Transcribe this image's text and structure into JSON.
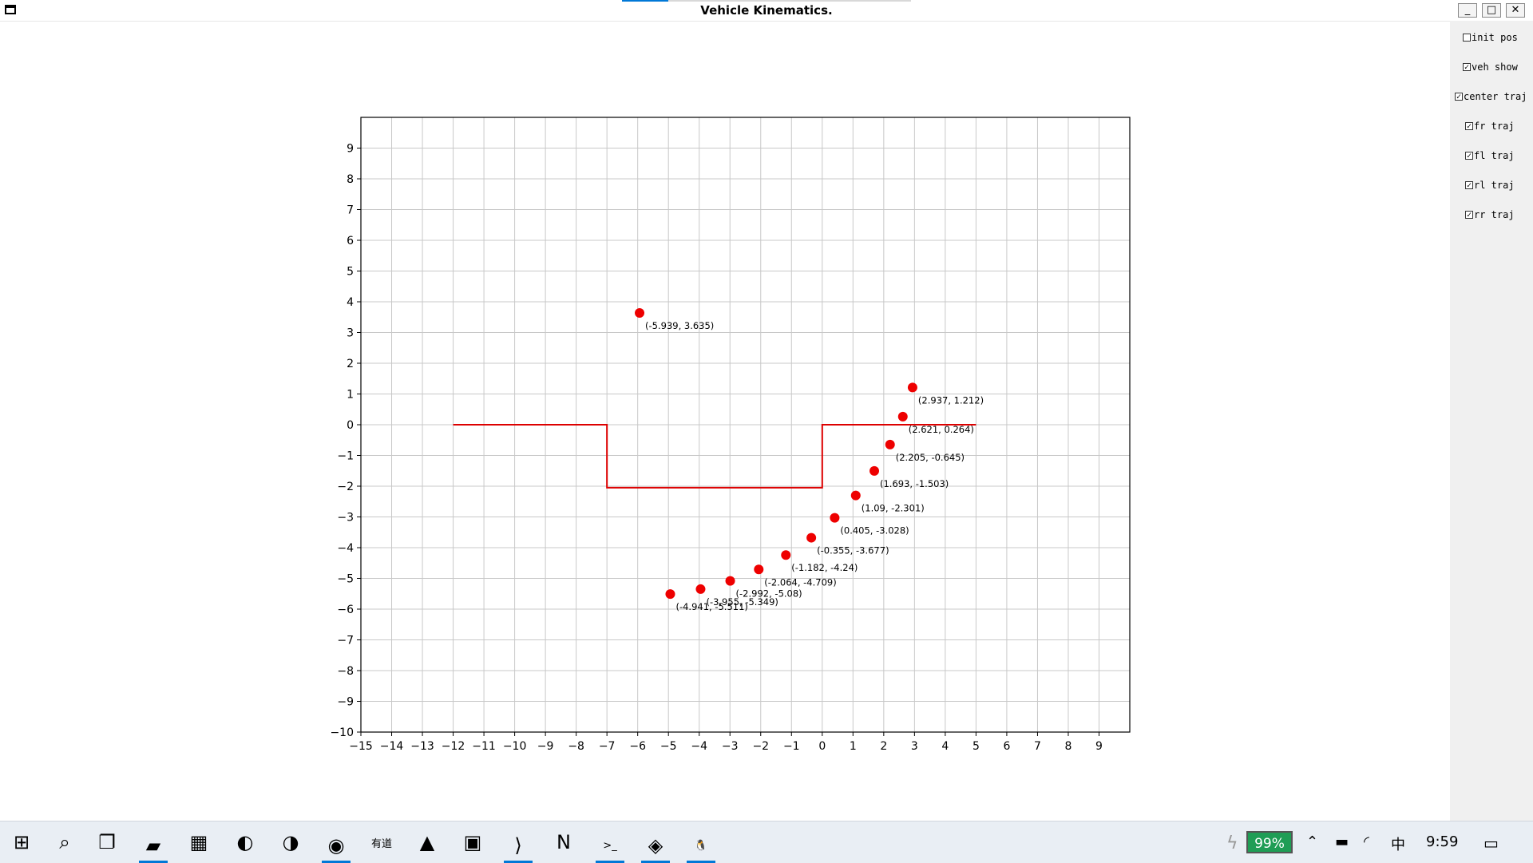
{
  "window": {
    "title": "Vehicle Kinematics.",
    "buttons": {
      "minimize": "_",
      "maximize": "□",
      "close": "✕"
    },
    "title_progress": 0.16
  },
  "side_panel": {
    "checkboxes": [
      {
        "label": "init pos",
        "checked": false
      },
      {
        "label": "veh show",
        "checked": true
      },
      {
        "label": "center traj",
        "checked": true
      },
      {
        "label": "fr traj",
        "checked": true
      },
      {
        "label": "fl traj",
        "checked": true
      },
      {
        "label": "rl traj",
        "checked": true
      },
      {
        "label": "rr traj",
        "checked": true
      }
    ]
  },
  "chart_data": {
    "type": "scatter",
    "title": "",
    "xlabel": "",
    "ylabel": "",
    "xlim": [
      -15,
      10
    ],
    "ylim": [
      -10,
      10
    ],
    "xticks": [
      -15,
      -14,
      -13,
      -12,
      -11,
      -10,
      -9,
      -8,
      -7,
      -6,
      -5,
      -4,
      -3,
      -2,
      -1,
      0,
      1,
      2,
      3,
      4,
      5,
      6,
      7,
      8,
      9
    ],
    "yticks": [
      -10,
      -9,
      -8,
      -7,
      -6,
      -5,
      -4,
      -3,
      -2,
      -1,
      0,
      1,
      2,
      3,
      4,
      5,
      6,
      7,
      8,
      9
    ],
    "grid": true,
    "colors": {
      "line": "#dd0000",
      "points": "#ee0000"
    },
    "road_line": {
      "x": [
        -12,
        -7,
        -7,
        0,
        0,
        5
      ],
      "y": [
        0,
        0,
        -2.05,
        -2.05,
        0,
        0
      ]
    },
    "points": [
      {
        "x": -5.939,
        "y": 3.635,
        "label": "(-5.939, 3.635)"
      },
      {
        "x": 2.937,
        "y": 1.212,
        "label": "(2.937, 1.212)"
      },
      {
        "x": 2.621,
        "y": 0.264,
        "label": "(2.621, 0.264)"
      },
      {
        "x": 2.205,
        "y": -0.645,
        "label": "(2.205, -0.645)"
      },
      {
        "x": 1.693,
        "y": -1.503,
        "label": "(1.693, -1.503)"
      },
      {
        "x": 1.09,
        "y": -2.301,
        "label": "(1.09, -2.301)"
      },
      {
        "x": 0.405,
        "y": -3.028,
        "label": "(0.405, -3.028)"
      },
      {
        "x": -0.355,
        "y": -3.677,
        "label": "(-0.355, -3.677)"
      },
      {
        "x": -1.182,
        "y": -4.24,
        "label": "(-1.182, -4.24)"
      },
      {
        "x": -2.064,
        "y": -4.709,
        "label": "(-2.064, -4.709)"
      },
      {
        "x": -2.992,
        "y": -5.08,
        "label": "(-2.992, -5.08)"
      },
      {
        "x": -3.955,
        "y": -5.349,
        "label": "(-3.955, -5.349)"
      },
      {
        "x": -4.941,
        "y": -5.511,
        "label": "(-4.941, -5.511)"
      }
    ]
  },
  "taskbar": {
    "icons": [
      {
        "name": "windows-start-icon",
        "glyph": "⊞",
        "active": false
      },
      {
        "name": "search-icon",
        "glyph": "⌕",
        "active": false
      },
      {
        "name": "task-view-icon",
        "glyph": "❐",
        "active": false
      },
      {
        "name": "file-explorer-icon",
        "glyph": "▰",
        "active": true
      },
      {
        "name": "calculator-icon",
        "glyph": "▦",
        "active": false
      },
      {
        "name": "edge-icon",
        "glyph": "◐",
        "active": false
      },
      {
        "name": "edge-beta-icon",
        "glyph": "◑",
        "active": false
      },
      {
        "name": "chrome-icon",
        "glyph": "◉",
        "active": true
      },
      {
        "name": "youdao-icon",
        "glyph": "有道",
        "active": false
      },
      {
        "name": "matlab-icon",
        "glyph": "▲",
        "active": false
      },
      {
        "name": "photos-icon",
        "glyph": "▣",
        "active": false
      },
      {
        "name": "vscode-icon",
        "glyph": "⟩",
        "active": true
      },
      {
        "name": "onenote-icon",
        "glyph": "N",
        "active": false
      },
      {
        "name": "terminal-icon",
        "glyph": ">_",
        "active": true
      },
      {
        "name": "app-purple-icon",
        "glyph": "◈",
        "active": true
      },
      {
        "name": "linux-penguin-icon",
        "glyph": "🐧",
        "active": true
      }
    ],
    "battery_percent": "99%",
    "ime": "中",
    "clock": "9:59"
  }
}
